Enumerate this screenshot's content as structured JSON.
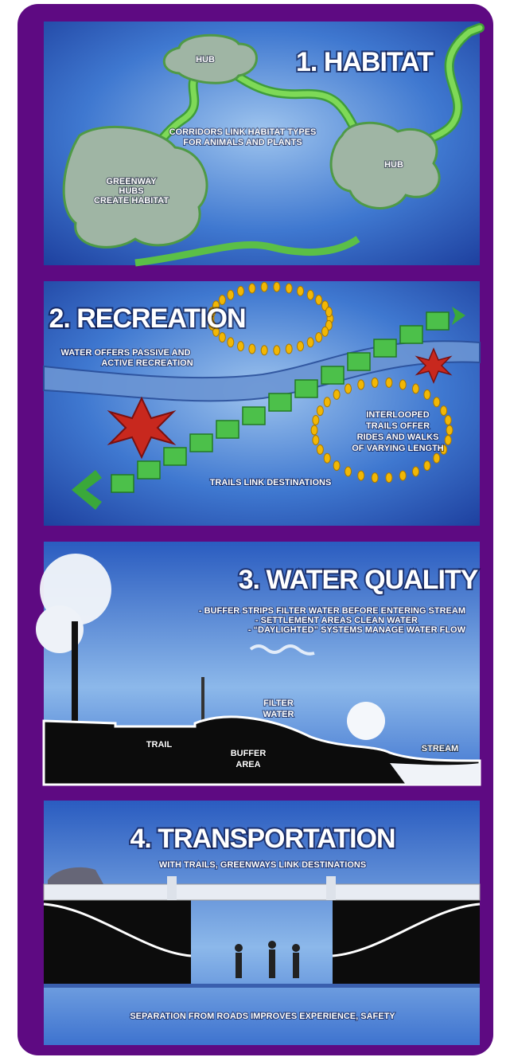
{
  "panels": [
    {
      "title": "1. HABITAT",
      "labels": [
        [
          "HUB"
        ],
        [
          "HUB"
        ],
        [
          "CORRIDORS LINK HABITAT TYPES",
          "FOR ANIMALS AND PLANTS"
        ],
        [
          "GREENWAY",
          "HUBS",
          "CREATE HABITAT"
        ]
      ]
    },
    {
      "title": "2. RECREATION",
      "labels": [
        [
          "WATER OFFERS PASSIVE AND",
          "ACTIVE RECREATION"
        ],
        [
          "INTERLOOPED",
          "TRAILS OFFER",
          "RIDES AND WALKS",
          "OF VARYING LENGTH"
        ],
        [
          "TRAILS LINK DESTINATIONS"
        ]
      ]
    },
    {
      "title": "3. WATER QUALITY",
      "labels": [
        [
          "- BUFFER STRIPS FILTER WATER BEFORE ENTERING STREAM",
          "- SETTLEMENT AREAS CLEAN WATER",
          "- “DAYLIGHTED” SYSTEMS MANAGE WATER FLOW"
        ],
        [
          "FILTER",
          "WATER"
        ],
        [
          "TRAIL"
        ],
        [
          "BUFFER",
          "AREA"
        ],
        [
          "STREAM"
        ]
      ]
    },
    {
      "title": "4. TRANSPORTATION",
      "labels": [
        [
          "WITH TRAILS, GREENWAYS LINK DESTINATIONS"
        ],
        [
          "SEPARATION FROM ROADS IMPROVES EXPERIENCE, SAFETY"
        ]
      ]
    }
  ]
}
